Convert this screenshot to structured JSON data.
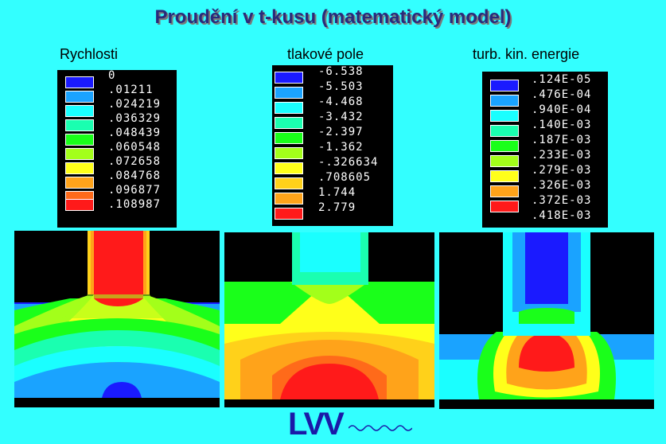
{
  "title": "Proudění v t-kusu (matematický model)",
  "panels": [
    {
      "label": "Rychlosti",
      "levels": [
        "0",
        ".01211",
        ".024219",
        ".036329",
        ".048439",
        ".060548",
        ".072658",
        ".084768",
        ".096877",
        ".108987"
      ]
    },
    {
      "label": "tlakové pole",
      "levels": [
        "-6.538",
        "-5.503",
        "-4.468",
        "-3.432",
        "-2.397",
        "-1.362",
        "-.326634",
        ".708605",
        "1.744",
        "2.779"
      ]
    },
    {
      "label": "turb. kin. energie",
      "levels": [
        ".124E-05",
        ".476E-04",
        ".940E-04",
        ".140E-03",
        ".187E-03",
        ".233E-03",
        ".279E-03",
        ".326E-03",
        ".372E-03",
        ".418E-03"
      ]
    }
  ],
  "colors": [
    "#1a1aff",
    "#1aa3ff",
    "#1affff",
    "#1affb0",
    "#1aff1a",
    "#a3ff1a",
    "#ffff1a",
    "#ffd11a",
    "#ffa31a",
    "#ff1a1a"
  ],
  "logo": "LVV"
}
